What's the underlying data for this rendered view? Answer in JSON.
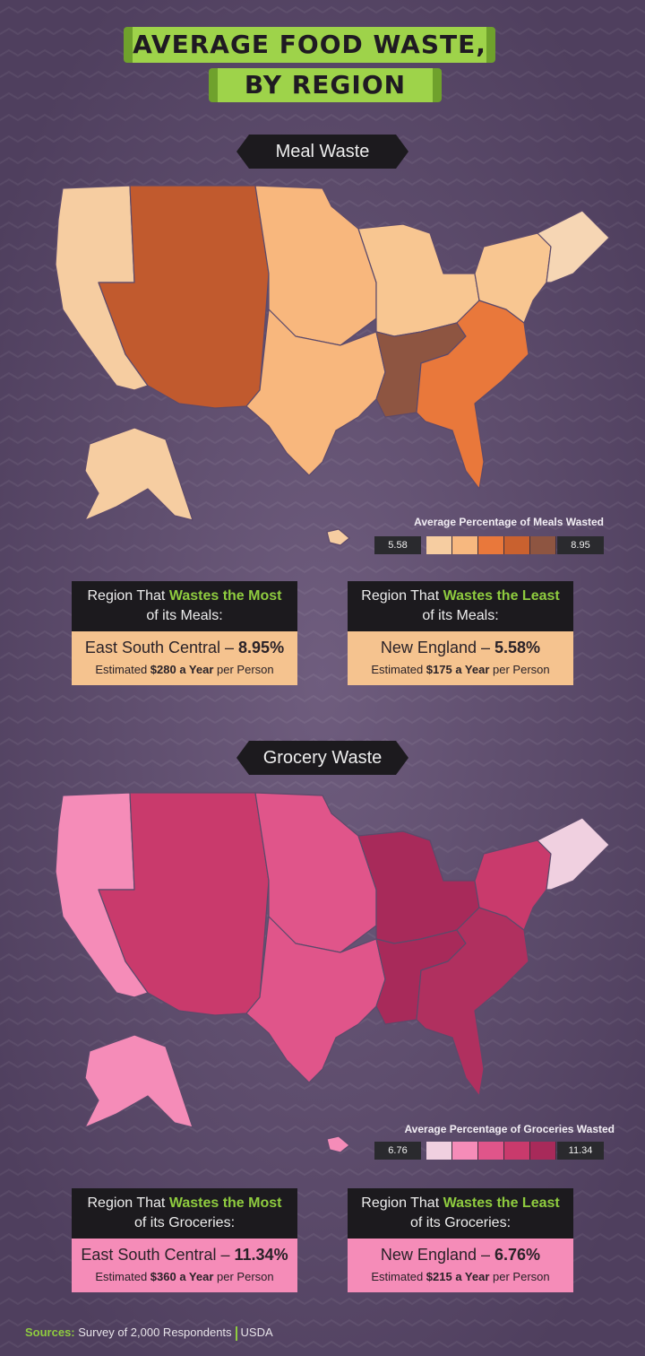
{
  "title": {
    "line1": "AVERAGE FOOD WASTE,",
    "line2": "BY REGION"
  },
  "meal": {
    "section_label": "Meal Waste",
    "legend_title": "Average Percentage of Meals Wasted",
    "legend_min": "5.58",
    "legend_max": "8.95",
    "legend_colors": [
      "#f6cda1",
      "#f7b87f",
      "#e9783b",
      "#c9612f",
      "#8e5541"
    ],
    "region_colors": {
      "pacific": "#f6cda1",
      "mountain": "#c15a2e",
      "west_north_central": "#f8b77d",
      "east_north_central": "#f8c691",
      "west_south_central": "#f8b77d",
      "east_south_central": "#8e5541",
      "south_atlantic": "#e9783b",
      "middle_atlantic": "#f8c691",
      "new_england": "#f6d6b4",
      "alaska": "#f6cda1",
      "hawaii": "#f6cda1"
    },
    "most": {
      "head_pre": "Region That ",
      "head_em": "Wastes the Most",
      "head_post": "of its Meals:",
      "region": "East South Central – ",
      "value": "8.95%",
      "est_pre": "Estimated ",
      "est_val": "$280 a Year",
      "est_post": " per Person"
    },
    "least": {
      "head_pre": "Region That ",
      "head_em": "Wastes the Least",
      "head_post": "of its Meals:",
      "region": "New England – ",
      "value": "5.58%",
      "est_pre": "Estimated ",
      "est_val": "$175 a Year",
      "est_post": " per Person"
    },
    "box_color": "#f5c38f"
  },
  "grocery": {
    "section_label": "Grocery Waste",
    "legend_title": "Average Percentage of Groceries Wasted",
    "legend_min": "6.76",
    "legend_max": "11.34",
    "legend_colors": [
      "#f0d0e0",
      "#f58cb8",
      "#e0558a",
      "#c93a6c",
      "#a82a5a"
    ],
    "region_colors": {
      "pacific": "#f58cb8",
      "mountain": "#c93a6c",
      "west_north_central": "#e0558a",
      "east_north_central": "#a82a5a",
      "west_south_central": "#e0558a",
      "east_south_central": "#a82a5a",
      "south_atlantic": "#b0305f",
      "middle_atlantic": "#c93a6c",
      "new_england": "#f0d0e0",
      "alaska": "#f58cb8",
      "hawaii": "#f58cb8"
    },
    "most": {
      "head_pre": "Region That ",
      "head_em": "Wastes the Most",
      "head_post": "of its Groceries:",
      "region": "East South Central – ",
      "value": "11.34%",
      "est_pre": "Estimated ",
      "est_val": "$360 a Year",
      "est_post": " per Person"
    },
    "least": {
      "head_pre": "Region That ",
      "head_em": "Wastes the Least",
      "head_post": "of its Groceries:",
      "region": "New England – ",
      "value": "6.76%",
      "est_pre": "Estimated ",
      "est_val": "$215 a Year",
      "est_post": " per Person"
    },
    "box_color": "#f58cb8"
  },
  "footer": {
    "label": "Sources:",
    "source1": "Survey of 2,000 Respondents",
    "source2": "USDA"
  }
}
